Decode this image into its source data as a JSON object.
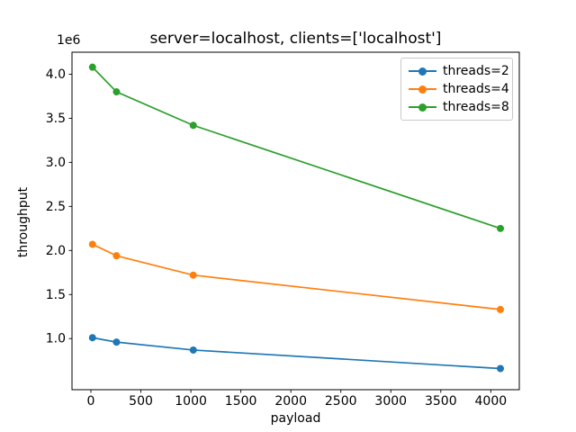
{
  "chart_data": {
    "type": "line",
    "title": "server=localhost, clients=['localhost']",
    "xlabel": "payload",
    "ylabel": "throughput",
    "y_offset_text": "1e6",
    "x": [
      16,
      256,
      1024,
      4096
    ],
    "series": [
      {
        "name": "threads=2",
        "color": "#1f77b4",
        "values_e6": [
          1.01,
          0.96,
          0.87,
          0.66
        ]
      },
      {
        "name": "threads=4",
        "color": "#ff7f0e",
        "values_e6": [
          2.07,
          1.94,
          1.72,
          1.33
        ]
      },
      {
        "name": "threads=8",
        "color": "#2ca02c",
        "values_e6": [
          4.08,
          3.8,
          3.42,
          2.25
        ]
      }
    ],
    "xticks": [
      0,
      500,
      1000,
      1500,
      2000,
      2500,
      3000,
      3500,
      4000
    ],
    "yticks_e6": [
      1.0,
      1.5,
      2.0,
      2.5,
      3.0,
      3.5,
      4.0
    ],
    "xlim": [
      -189,
      4285
    ],
    "ylim_e6": [
      0.42,
      4.25
    ],
    "grid": false,
    "marker": "o",
    "legend_position": "upper right",
    "background_color": "#ffffff",
    "spine_color": "#000000"
  }
}
